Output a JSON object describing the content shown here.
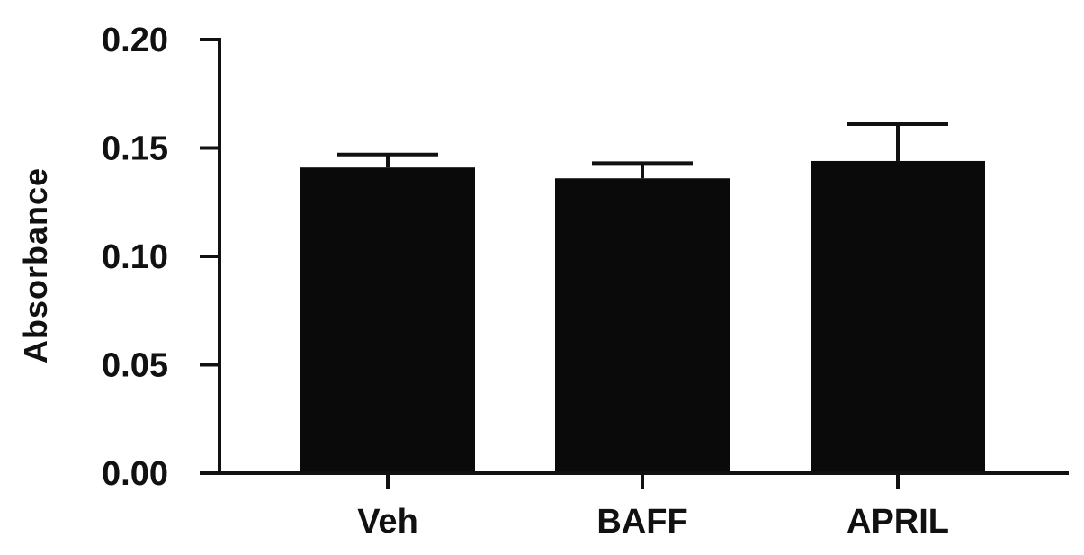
{
  "chart_data": {
    "type": "bar",
    "title": "",
    "xlabel": "",
    "ylabel": "Absorbance",
    "categories": [
      "Veh",
      "BAFF",
      "APRIL"
    ],
    "values": [
      0.141,
      0.136,
      0.144
    ],
    "error": [
      0.006,
      0.007,
      0.017
    ],
    "ylim": [
      0,
      0.2
    ],
    "yticks": [
      0.0,
      0.05,
      0.1,
      0.15,
      0.2
    ],
    "ytick_labels": [
      "0.00",
      "0.05",
      "0.10",
      "0.15",
      "0.20"
    ],
    "grid": false,
    "bar_color": "#0a0a0a",
    "axis_color": "#111111"
  }
}
